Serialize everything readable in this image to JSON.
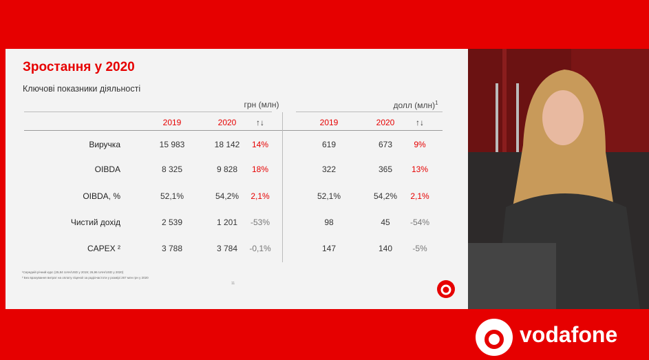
{
  "slide": {
    "title": "Зростання у 2020",
    "subtitle": "Ключові показники діяльності",
    "groups": [
      {
        "label": "грн (млн)"
      },
      {
        "label": "долл (млн)",
        "note": "1"
      }
    ],
    "columns": [
      "2019",
      "2020",
      "↑↓",
      "2019",
      "2020",
      "↑↓"
    ],
    "rows": [
      {
        "label": "Виручка",
        "cells": [
          "15 983",
          "18 142",
          "14%",
          "619",
          "673",
          "9%"
        ]
      },
      {
        "label": "OIBDA",
        "cells": [
          "8 325",
          "9 828",
          "18%",
          "322",
          "365",
          "13%"
        ]
      },
      {
        "label": "OIBDA, %",
        "cells": [
          "52,1%",
          "54,2%",
          "2,1%",
          "52,1%",
          "54,2%",
          "2,1%"
        ]
      },
      {
        "label": "Чистий дохід",
        "cells": [
          "2 539",
          "1 201",
          "-53%",
          "98",
          "45",
          "-54%"
        ]
      },
      {
        "label": "CAPEX ²",
        "cells": [
          "3 788",
          "3 784",
          "-0,1%",
          "147",
          "140",
          "-5%"
        ]
      }
    ],
    "footnotes": [
      "¹Середній річний курс (25,84 UAH/USD у 2019; 26,96 UAH/USD у 2020)",
      "² Без врахування витрат на оплату ліцензії за радіочастоти у розмірі 267 млн грн у 2020"
    ],
    "page": "11"
  },
  "brand": "vodafone"
}
